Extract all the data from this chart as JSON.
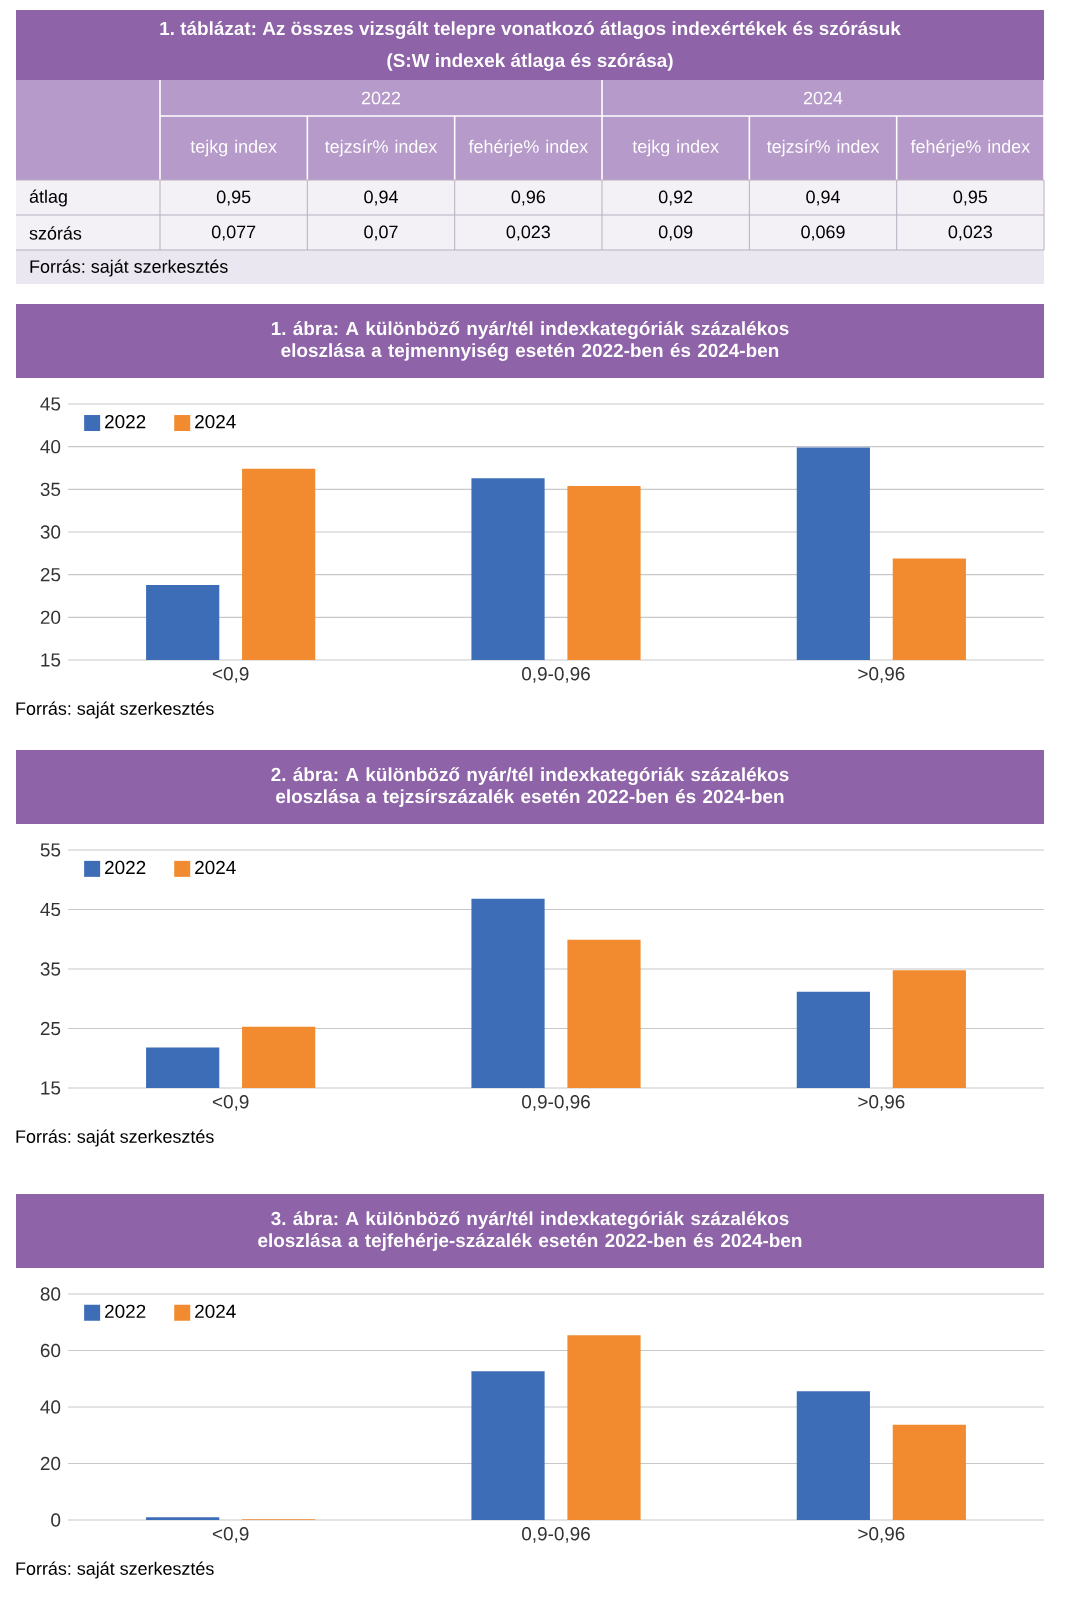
{
  "chart_data": [
    {
      "type": "other",
      "title": "1. táblázat: Az összes vizsgált telepre vonatkozó átlagos indexértékek és szórásuk",
      "subtitle": "(S:W indexek átlaga és szórása)",
      "annotations": [
        "2022",
        "2024",
        "Forrás: saját szerkesztés"
      ],
      "categories": [
        "tejkg index",
        "tejzsír% index",
        "fehérje% index",
        "tejkg index",
        "tejzsír% index",
        "fehérje% index"
      ],
      "y_categories": [
        "átlag",
        "szórás"
      ],
      "cell_labels": [
        [
          "0,95",
          "0,94",
          "0,96",
          "0,92",
          "0,94",
          "0,95"
        ],
        [
          "0,077",
          "0,07",
          "0,023",
          "0,09",
          "0,069",
          "0,023"
        ]
      ]
    },
    {
      "type": "bar",
      "title": "1. ábra: A különböző nyár/tél indexkategóriák százalékos eloszlása a tejmennyiség esetén 2022-ben és 2024-ben",
      "categories": [
        "<0,9",
        "0,9-0,96",
        ">0,96"
      ],
      "series": [
        {
          "name": "2022",
          "color": "#3c6db6",
          "values": [
            23.8,
            36.3,
            39.9
          ]
        },
        {
          "name": "2024",
          "color": "#f28b30",
          "values": [
            37.4,
            35.4,
            26.9
          ]
        }
      ],
      "ylim": [
        15,
        45
      ],
      "yticks": [
        15,
        20,
        25,
        30,
        35,
        40,
        45
      ],
      "grid": "y",
      "legend": "top left",
      "annotations": [
        "Forrás: saját szerkesztés"
      ]
    },
    {
      "type": "bar",
      "title": "2. ábra: A különböző nyár/tél indexkategóriák százalékos eloszlása a tejzsírszázalék esetén 2022-ben és 2024-ben",
      "categories": [
        "<0,9",
        "0,9-0,96",
        ">0,96"
      ],
      "series": [
        {
          "name": "2022",
          "color": "#3c6db6",
          "values": [
            21.8,
            46.8,
            31.2
          ]
        },
        {
          "name": "2024",
          "color": "#f28b30",
          "values": [
            25.3,
            39.9,
            34.8
          ]
        }
      ],
      "ylim": [
        15,
        55
      ],
      "yticks": [
        15,
        25,
        35,
        45,
        55
      ],
      "grid": "y",
      "legend": "top left",
      "annotations": [
        "Forrás: saját szerkesztés"
      ]
    },
    {
      "type": "bar",
      "title": "3. ábra: A különböző nyár/tél indexkategóriák százalékos eloszlása a tejfehérje-százalék esetén 2022-ben és 2024-ben",
      "categories": [
        "<0,9",
        "0,9-0,96",
        ">0,96"
      ],
      "series": [
        {
          "name": "2022",
          "color": "#3c6db6",
          "values": [
            1.0,
            52.7,
            45.6
          ]
        },
        {
          "name": "2024",
          "color": "#f28b30",
          "values": [
            0.3,
            65.4,
            33.7
          ]
        }
      ],
      "ylim": [
        0,
        80
      ],
      "yticks": [
        0,
        20,
        40,
        60,
        80
      ],
      "grid": "y",
      "legend": "top left",
      "annotations": [
        "Forrás: saját szerkesztés"
      ]
    }
  ]
}
